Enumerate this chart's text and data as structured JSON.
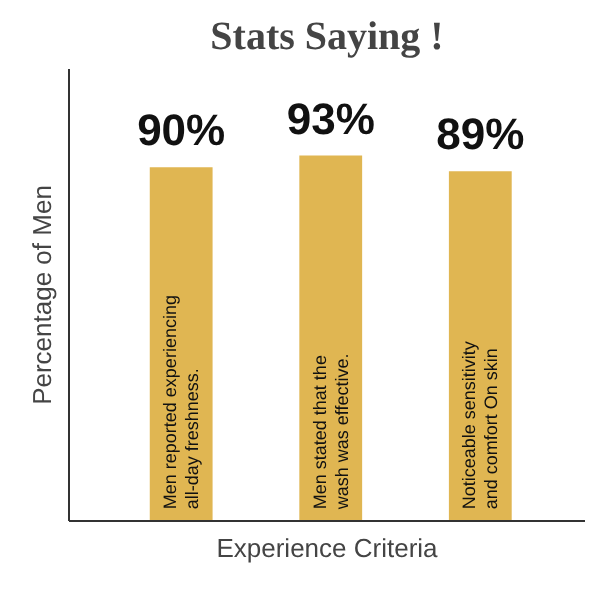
{
  "chart_data": {
    "type": "bar",
    "title": "Stats Saying !",
    "xlabel": "Experience Criteria",
    "ylabel": "Percentage of Men",
    "categories": [
      "Men reported experiencing all-day freshness.",
      "Men stated that the wash was effective.",
      "Noticeable sensitivity and comfort On skin"
    ],
    "values": [
      90,
      93,
      89
    ],
    "value_labels": [
      "90%",
      "93%",
      "89%"
    ],
    "color": "#e0b652",
    "ylim": [
      0,
      115
    ]
  }
}
